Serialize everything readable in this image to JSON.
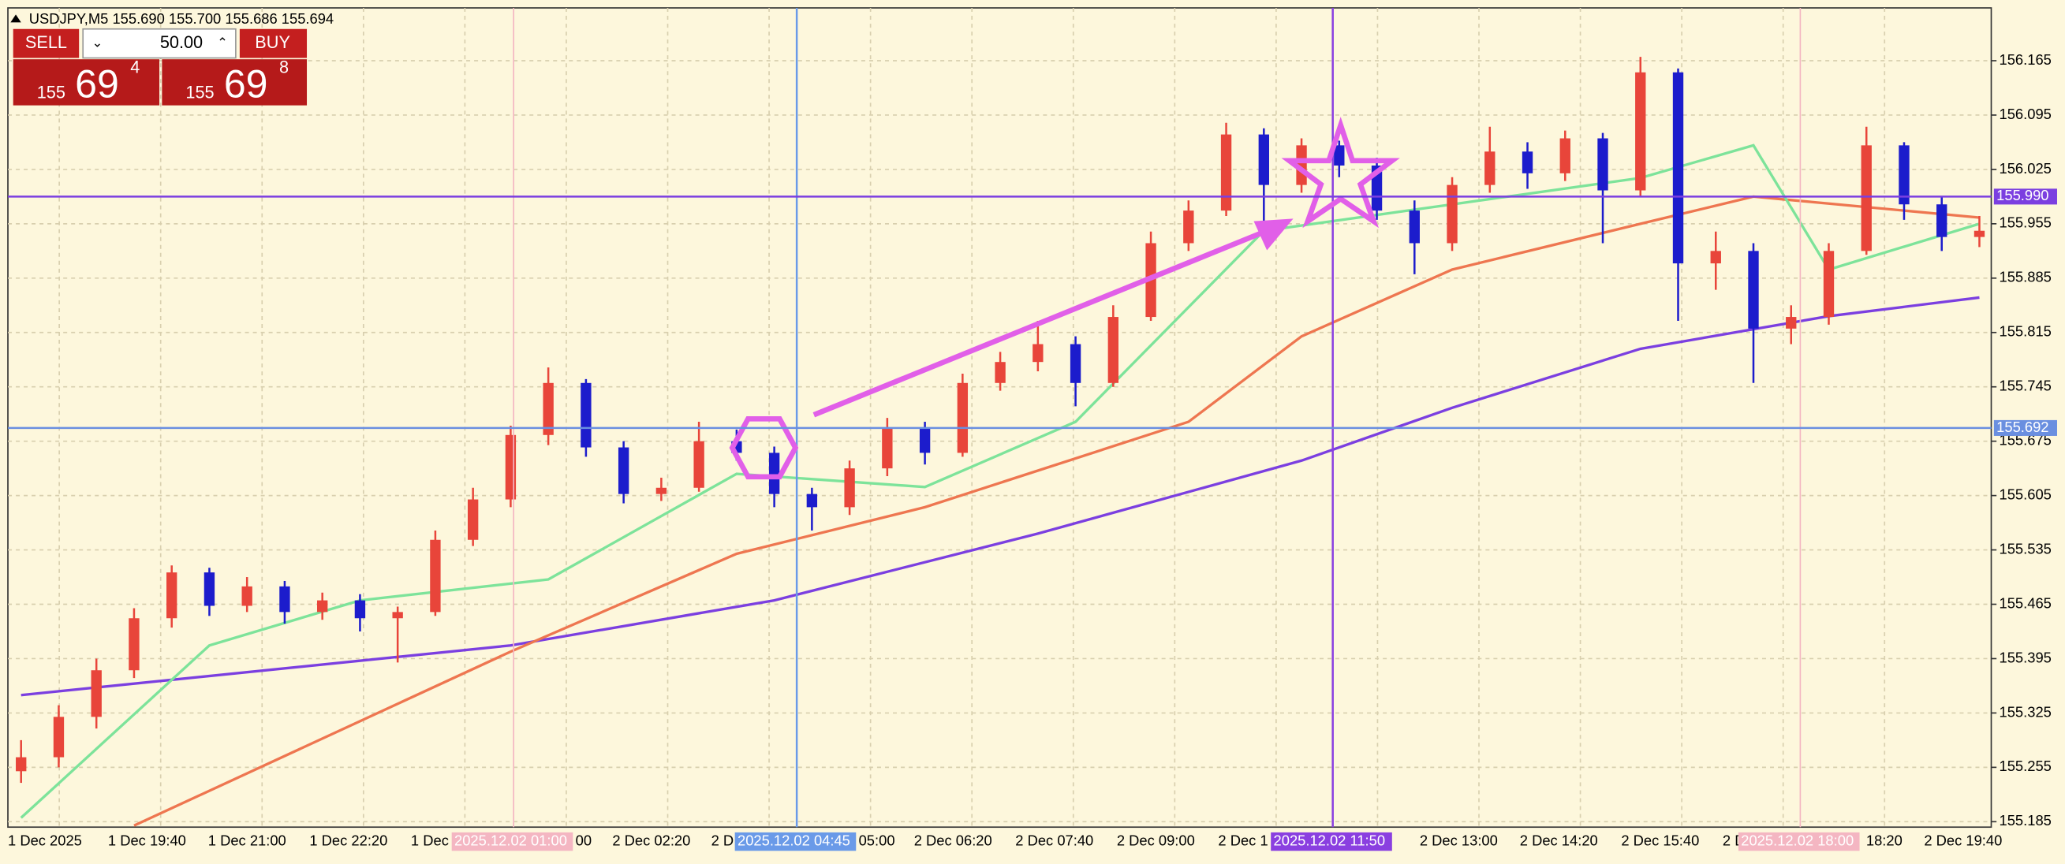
{
  "chart_data": {
    "type": "candlestick",
    "header": "USDJPY,M5  155.690 155.700 155.686 155.694",
    "open": [
      155.25,
      155.268,
      155.32,
      155.38,
      155.447,
      155.506,
      155.463,
      155.488,
      155.455,
      155.47,
      155.447,
      155.455,
      155.548,
      155.6,
      155.683,
      155.75,
      155.667,
      155.607,
      155.615,
      155.675,
      155.66,
      155.607,
      155.59,
      155.64,
      155.692,
      155.66,
      155.75,
      155.777,
      155.8,
      155.75,
      155.835,
      155.93,
      155.972,
      156.07,
      156.005,
      156.056,
      156.03,
      155.972,
      155.93,
      156.005,
      156.048,
      156.02,
      156.065,
      155.998,
      156.15,
      155.904,
      155.92,
      155.82,
      155.835,
      155.92,
      156.056,
      155.98,
      155.938
    ],
    "high": [
      155.29,
      155.335,
      155.395,
      155.46,
      155.515,
      155.512,
      155.5,
      155.495,
      155.48,
      155.478,
      155.462,
      155.56,
      155.615,
      155.695,
      155.77,
      155.755,
      155.675,
      155.628,
      155.7,
      155.69,
      155.668,
      155.615,
      155.65,
      155.705,
      155.7,
      155.762,
      155.79,
      155.83,
      155.81,
      155.85,
      155.945,
      155.985,
      156.085,
      156.078,
      156.065,
      156.062,
      156.04,
      155.985,
      156.015,
      156.08,
      156.06,
      156.075,
      156.072,
      156.17,
      156.155,
      155.945,
      155.93,
      155.85,
      155.93,
      156.08,
      156.06,
      155.99,
      155.965
    ],
    "low": [
      155.235,
      155.255,
      155.305,
      155.37,
      155.435,
      155.45,
      155.455,
      155.44,
      155.445,
      155.43,
      155.39,
      155.45,
      155.54,
      155.59,
      155.67,
      155.655,
      155.595,
      155.598,
      155.61,
      155.65,
      155.59,
      155.56,
      155.58,
      155.63,
      155.645,
      155.655,
      155.74,
      155.765,
      155.72,
      155.745,
      155.83,
      155.92,
      155.965,
      155.94,
      155.995,
      156.015,
      155.96,
      155.89,
      155.92,
      155.995,
      156.0,
      156.01,
      155.93,
      155.99,
      155.83,
      155.87,
      155.75,
      155.8,
      155.825,
      155.915,
      155.96,
      155.92,
      155.925
    ],
    "close": [
      155.268,
      155.32,
      155.38,
      155.447,
      155.506,
      155.463,
      155.488,
      155.455,
      155.47,
      155.447,
      155.455,
      155.548,
      155.6,
      155.683,
      155.75,
      155.667,
      155.607,
      155.615,
      155.675,
      155.66,
      155.607,
      155.59,
      155.64,
      155.692,
      155.66,
      155.75,
      155.777,
      155.8,
      155.75,
      155.835,
      155.93,
      155.972,
      156.07,
      156.005,
      156.056,
      156.03,
      155.972,
      155.93,
      156.005,
      156.048,
      156.02,
      156.065,
      155.998,
      156.15,
      155.904,
      155.92,
      155.82,
      155.835,
      155.92,
      156.056,
      155.98,
      155.938,
      155.946
    ],
    "up_color": "#e8453a",
    "down_color": "#1c1ccc",
    "lines": [
      {
        "color": "#7b3fe0",
        "x": [
          0,
          13,
          20,
          27,
          34,
          38,
          43,
          48,
          52
        ],
        "values": [
          155.348,
          155.412,
          155.47,
          155.556,
          155.65,
          155.718,
          155.794,
          155.836,
          155.86
        ]
      },
      {
        "color": "#ee7650",
        "x": [
          3,
          13,
          19,
          24,
          31,
          34,
          38,
          43,
          46,
          52
        ],
        "values": [
          155.18,
          155.404,
          155.53,
          155.59,
          155.7,
          155.81,
          155.896,
          155.955,
          155.99,
          155.963
        ]
      },
      {
        "color": "#7de39a",
        "x": [
          0,
          5,
          9,
          14,
          19,
          24,
          28,
          33,
          38,
          43,
          46,
          48,
          52
        ],
        "values": [
          155.19,
          155.412,
          155.47,
          155.497,
          155.633,
          155.616,
          155.7,
          155.946,
          155.98,
          156.014,
          156.056,
          155.896,
          155.955
        ]
      }
    ],
    "ylim": [
      155.178,
      156.233
    ],
    "yticks": [
      156.165,
      156.095,
      156.025,
      155.955,
      155.885,
      155.815,
      155.745,
      155.675,
      155.605,
      155.535,
      155.465,
      155.395,
      155.325,
      155.255,
      155.185
    ],
    "grid": true,
    "price_lines": [
      {
        "value": 155.99,
        "label": "155.990",
        "color": "#7b3fe0"
      },
      {
        "value": 155.692,
        "label": "155.692",
        "color": "#6a8fe0"
      }
    ],
    "x_labels": [
      "1 Dec 2025",
      "1 Dec 19:40",
      "1 Dec 21:00",
      "1 Dec 22:20",
      "1 Dec",
      "00",
      "2 Dec 02:20",
      "2 D",
      "05:00",
      "2 Dec 06:20",
      "2 Dec 07:40",
      "2 Dec 09:00",
      "2 Dec 1",
      "2 Dec 13:00",
      "2 Dec 14:20",
      "2 Dec 15:40",
      "2 D",
      "18:20",
      "2 Dec 19:40"
    ],
    "time_markers": [
      {
        "label": "2025.12.02 01:00",
        "color": "#f4b6c2"
      },
      {
        "label": "2025.12.02 04:45",
        "color": "#6a9ae8"
      },
      {
        "label": "2025.12.02 11:50",
        "color": "#8a3fe0"
      },
      {
        "label": "2025.12.02 18:00",
        "color": "#f4b6c2"
      }
    ]
  },
  "trade_panel": {
    "sell": "SELL",
    "buy": "BUY",
    "lots": "50.00",
    "sell_price": {
      "big": "155",
      "pips": "69",
      "fraction": "4"
    },
    "buy_price": {
      "big": "155",
      "pips": "69",
      "fraction": "8"
    }
  }
}
